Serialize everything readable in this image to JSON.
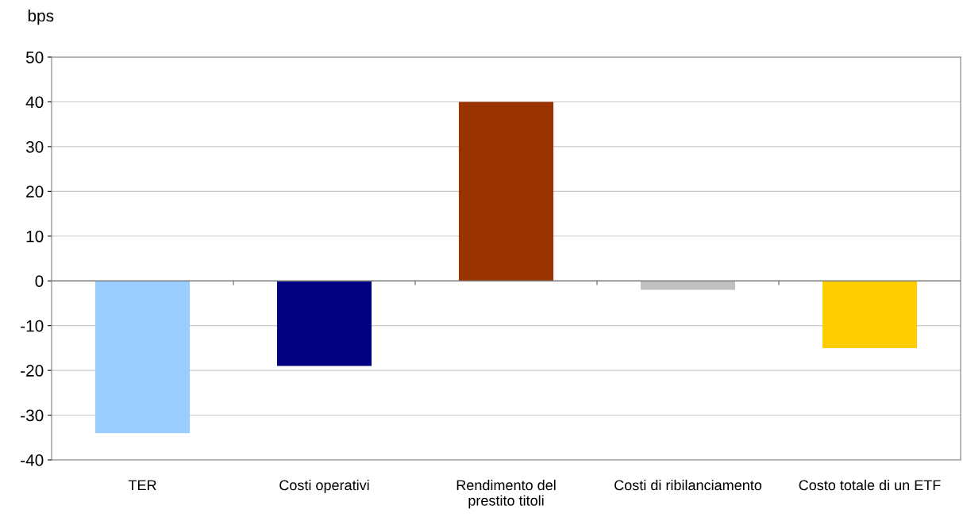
{
  "chart_data": {
    "type": "bar",
    "ylabel": "bps",
    "categories": [
      "TER",
      "Costi operativi",
      "Rendimento del\nprestito titoli",
      "Costi di ribilanciamento",
      "Costo totale di un ETF"
    ],
    "values": [
      -34,
      -19,
      40,
      -2,
      -15
    ],
    "colors": [
      "#99ccff",
      "#000080",
      "#993300",
      "#c0c0c0",
      "#ffcc00"
    ],
    "ylim": [
      -40,
      50
    ],
    "yticks": [
      -40,
      -30,
      -20,
      -10,
      0,
      10,
      20,
      30,
      40,
      50
    ],
    "grid": "y",
    "legend": false
  }
}
